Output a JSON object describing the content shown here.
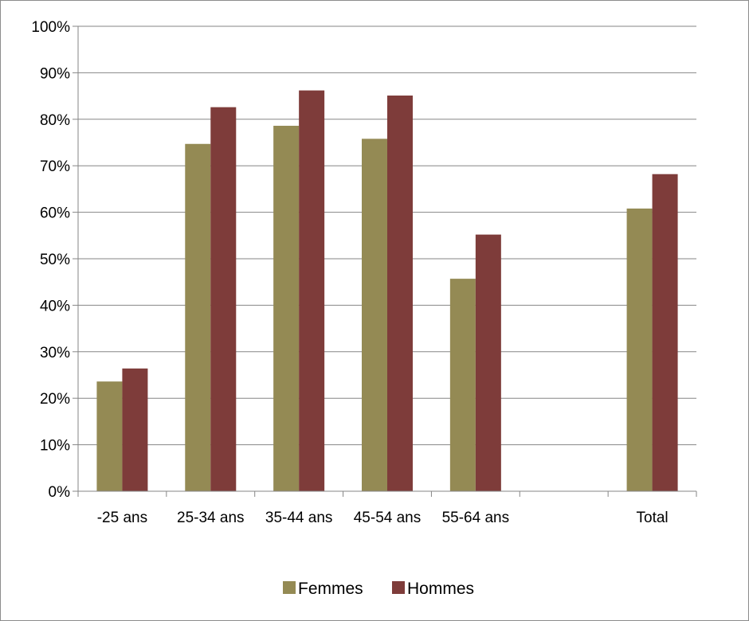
{
  "chart_data": {
    "type": "bar",
    "title": "",
    "xlabel": "",
    "ylabel": "",
    "categories": [
      "-25 ans",
      "25-34 ans",
      "35-44 ans",
      "45-54 ans",
      "55-64 ans",
      "",
      "Total"
    ],
    "series": [
      {
        "name": "Femmes",
        "color": "#948A54",
        "values": [
          23.6,
          74.7,
          78.6,
          75.8,
          45.7,
          null,
          60.8
        ]
      },
      {
        "name": "Hommes",
        "color": "#7E3C3A",
        "values": [
          26.4,
          82.6,
          86.2,
          85.1,
          55.2,
          null,
          68.2
        ]
      }
    ],
    "ylim": [
      0,
      100
    ],
    "yticks": [
      0,
      10,
      20,
      30,
      40,
      50,
      60,
      70,
      80,
      90,
      100
    ],
    "ytick_labels": [
      "0%",
      "10%",
      "20%",
      "30%",
      "40%",
      "50%",
      "60%",
      "70%",
      "80%",
      "90%",
      "100%"
    ],
    "grid": true,
    "legend_position": "bottom"
  }
}
